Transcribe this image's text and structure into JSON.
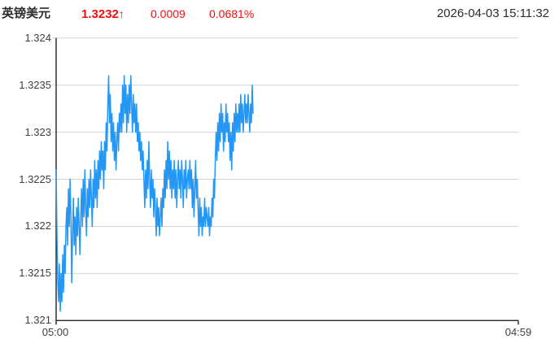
{
  "header": {
    "symbol": "英镑美元",
    "price": "1.3232",
    "arrow": "↑",
    "change": "0.0009",
    "change_percent": "0.0681%",
    "timestamp": "2026-04-03 15:11:32"
  },
  "colors": {
    "up_red": "#f20d0d",
    "line_blue": "#2496f3",
    "grid_gray": "#d4d4d4",
    "axis_dark": "#222222",
    "text_dark": "#2b2b2b"
  },
  "chart_data": {
    "type": "line",
    "title": "",
    "xlabel": "",
    "ylabel": "",
    "grid": true,
    "legend_position": "none",
    "ylim": [
      1.321,
      1.324
    ],
    "y_tick_labels": [
      "1.324",
      "1.3235",
      "1.323",
      "1.3225",
      "1.322",
      "1.3215",
      "1.321"
    ],
    "x_tick_labels": [
      "05:00",
      "04:59"
    ],
    "x_span_fraction": 0.426,
    "series": [
      {
        "name": "英镑美元",
        "values": [
          1.3226,
          1.3219,
          1.3214,
          1.3212,
          1.3216,
          1.3211,
          1.3215,
          1.3212,
          1.3217,
          1.3213,
          1.3218,
          1.3215,
          1.322,
          1.3222,
          1.3218,
          1.3224,
          1.322,
          1.3225,
          1.3221,
          1.3214,
          1.3219,
          1.3223,
          1.3218,
          1.3221,
          1.3217,
          1.3222,
          1.3219,
          1.3223,
          1.322,
          1.3217,
          1.3221,
          1.3224,
          1.322,
          1.3225,
          1.3221,
          1.3226,
          1.3222,
          1.3219,
          1.3224,
          1.3221,
          1.3225,
          1.3222,
          1.3226,
          1.3223,
          1.322,
          1.3225,
          1.3222,
          1.3227,
          1.3223,
          1.3226,
          1.3222,
          1.3227,
          1.3224,
          1.3228,
          1.3225,
          1.3229,
          1.3226,
          1.3228,
          1.3224,
          1.3229,
          1.3226,
          1.3231,
          1.3228,
          1.3233,
          1.3236,
          1.3231,
          1.3234,
          1.3229,
          1.3232,
          1.3228,
          1.3231,
          1.3227,
          1.323,
          1.3226,
          1.3229,
          1.3231,
          1.3228,
          1.3232,
          1.323,
          1.3233,
          1.323,
          1.3235,
          1.3231,
          1.3236,
          1.3232,
          1.3235,
          1.323,
          1.3234,
          1.3231,
          1.3235,
          1.3232,
          1.3236,
          1.3233,
          1.323,
          1.3234,
          1.3231,
          1.3233,
          1.323,
          1.3233,
          1.3229,
          1.3231,
          1.3228,
          1.323,
          1.3227,
          1.3229,
          1.3226,
          1.3228,
          1.3225,
          1.3222,
          1.3226,
          1.3223,
          1.3227,
          1.3224,
          1.3229,
          1.3225,
          1.3222,
          1.3226,
          1.3223,
          1.3225,
          1.3221,
          1.3224,
          1.3222,
          1.3219,
          1.3223,
          1.322,
          1.3222,
          1.3219,
          1.3221,
          1.3223,
          1.322,
          1.3224,
          1.3222,
          1.3226,
          1.3223,
          1.3227,
          1.3224,
          1.3229,
          1.3225,
          1.3228,
          1.3224,
          1.3227,
          1.3223,
          1.3226,
          1.3224,
          1.3227,
          1.3223,
          1.3226,
          1.3222,
          1.3225,
          1.3227,
          1.3224,
          1.3226,
          1.3223,
          1.3227,
          1.3225,
          1.3222,
          1.3226,
          1.3224,
          1.3227,
          1.3223,
          1.3225,
          1.3226,
          1.3224,
          1.3227,
          1.3224,
          1.3226,
          1.3222,
          1.3225,
          1.3221,
          1.3224,
          1.3227,
          1.3223,
          1.3225,
          1.3222,
          1.3219,
          1.3223,
          1.322,
          1.3222,
          1.3219,
          1.3221,
          1.322,
          1.3223,
          1.322,
          1.3222,
          1.3221,
          1.322,
          1.3222,
          1.3219,
          1.3221,
          1.322,
          1.3223,
          1.3221,
          1.3225,
          1.3223,
          1.3227,
          1.323,
          1.3227,
          1.3231,
          1.3228,
          1.3232,
          1.3229,
          1.3233,
          1.323,
          1.3232,
          1.3228,
          1.3231,
          1.3229,
          1.3233,
          1.323,
          1.3232,
          1.3229,
          1.3231,
          1.3227,
          1.323,
          1.3226,
          1.3231,
          1.3228,
          1.3232,
          1.3229,
          1.3233,
          1.323,
          1.3232,
          1.323,
          1.3233,
          1.323,
          1.3234,
          1.3231,
          1.3233,
          1.323,
          1.3232,
          1.3234,
          1.3231,
          1.3233,
          1.3231,
          1.3234,
          1.3232,
          1.323,
          1.3233,
          1.3231,
          1.3235,
          1.3232
        ]
      }
    ]
  }
}
